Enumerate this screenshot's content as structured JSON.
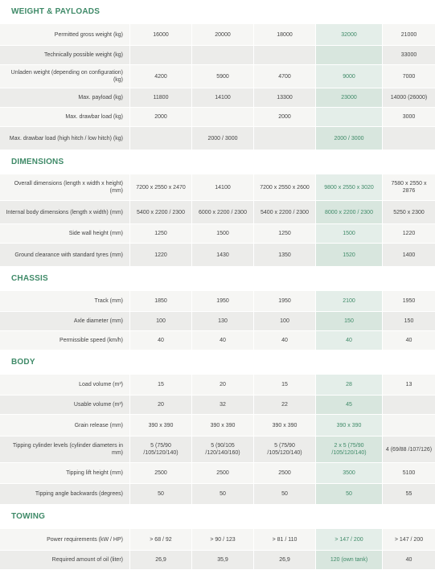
{
  "sections": [
    {
      "title": "WEIGHT & PAYLOADS",
      "rows": [
        {
          "label": "Permitted gross weight (kg)",
          "values": [
            "16000",
            "20000",
            "18000",
            "32000",
            "21000"
          ],
          "h": 27
        },
        {
          "label": "Technically possible weight (kg)",
          "values": [
            "",
            "",
            "",
            "",
            "33000"
          ],
          "h": 24
        },
        {
          "label": "Unladen weight (depending on configuration) (kg)",
          "values": [
            "4200",
            "5900",
            "4700",
            "9000",
            "7000"
          ],
          "h": 29
        },
        {
          "label": "Max. payload (kg)",
          "values": [
            "11800",
            "14100",
            "13300",
            "23000",
            "14000 (26000)"
          ],
          "h": 24
        },
        {
          "label": "Max. drawbar load (kg)",
          "values": [
            "2000",
            "",
            "2000",
            "",
            "3000"
          ],
          "h": 24
        },
        {
          "label": "Max. drawbar load (high hitch / low hitch) (kg)",
          "values": [
            "",
            "2000 / 3000",
            "",
            "2000 / 3000",
            ""
          ],
          "h": 29
        }
      ]
    },
    {
      "title": "DIMENSIONS",
      "rows": [
        {
          "label": "Overall dimensions (length x width x height) (mm)",
          "values": [
            "7200 x 2550 x 2470",
            "14100",
            "7200 x 2550 x 2600",
            "9800 x 2550 x 3020",
            "7580 x 2550 x 2876"
          ],
          "h": 33
        },
        {
          "label": "Internal body dimensions (length x width) (mm)",
          "values": [
            "5400 x 2200 / 2300",
            "6000 x 2200 / 2300",
            "5400 x 2200 / 2300",
            "8000 x 2200 / 2300",
            "5250 x 2300"
          ],
          "h": 29
        },
        {
          "label": "Side wall height (mm)",
          "values": [
            "1250",
            "1500",
            "1250",
            "1500",
            "1220"
          ],
          "h": 24
        },
        {
          "label": "Ground clearance with standard tyres (mm)",
          "values": [
            "1220",
            "1430",
            "1350",
            "1520",
            "1400"
          ],
          "h": 29
        }
      ]
    },
    {
      "title": "CHASSIS",
      "rows": [
        {
          "label": "Track (mm)",
          "values": [
            "1850",
            "1950",
            "1950",
            "2100",
            "1950"
          ],
          "h": 26
        },
        {
          "label": "Axle diameter (mm)",
          "values": [
            "100",
            "130",
            "100",
            "150",
            "150"
          ],
          "h": 24
        },
        {
          "label": "Permissible speed (km/h)",
          "values": [
            "40",
            "40",
            "40",
            "40",
            "40"
          ],
          "h": 24
        }
      ]
    },
    {
      "title": "BODY",
      "rows": [
        {
          "label": "Load volume (m³)",
          "values": [
            "15",
            "20",
            "15",
            "28",
            "13"
          ],
          "h": 26
        },
        {
          "label": "Usable volume (m³)",
          "values": [
            "20",
            "32",
            "22",
            "45",
            ""
          ],
          "h": 24
        },
        {
          "label": "Grain release (mm)",
          "values": [
            "390 x 390",
            "390 x 390",
            "390 x 390",
            "390 x 390",
            ""
          ],
          "h": 27
        },
        {
          "label": "Tipping cylinder levels (cylinder diameters in mm)",
          "values": [
            "5 (75/90 /105/120/140)",
            "5 (90/105 /120/140/160)",
            "5 (75/90 /105/120/140)",
            "2 x 5 (75/90 /105/120/140)",
            "4 (69/88 /107/126)"
          ],
          "h": 33
        },
        {
          "label": "Tipping lift height (mm)",
          "values": [
            "2500",
            "2500",
            "2500",
            "3500",
            "5100"
          ],
          "h": 26
        },
        {
          "label": "Tipping angle backwards (degrees)",
          "values": [
            "50",
            "50",
            "50",
            "50",
            "55"
          ],
          "h": 26
        }
      ]
    },
    {
      "title": "TOWING",
      "rows": [
        {
          "label": "Power requirements (kW / HP)",
          "values": [
            "> 68 / 92",
            "> 90 / 123",
            "> 81 / 110",
            "> 147 / 200",
            "> 147 / 200"
          ],
          "h": 27
        },
        {
          "label": "Required amount of oil (liter)",
          "values": [
            "26,9",
            "35,9",
            "26,9",
            "120 (own tank)",
            "40"
          ],
          "h": 24
        }
      ]
    }
  ]
}
